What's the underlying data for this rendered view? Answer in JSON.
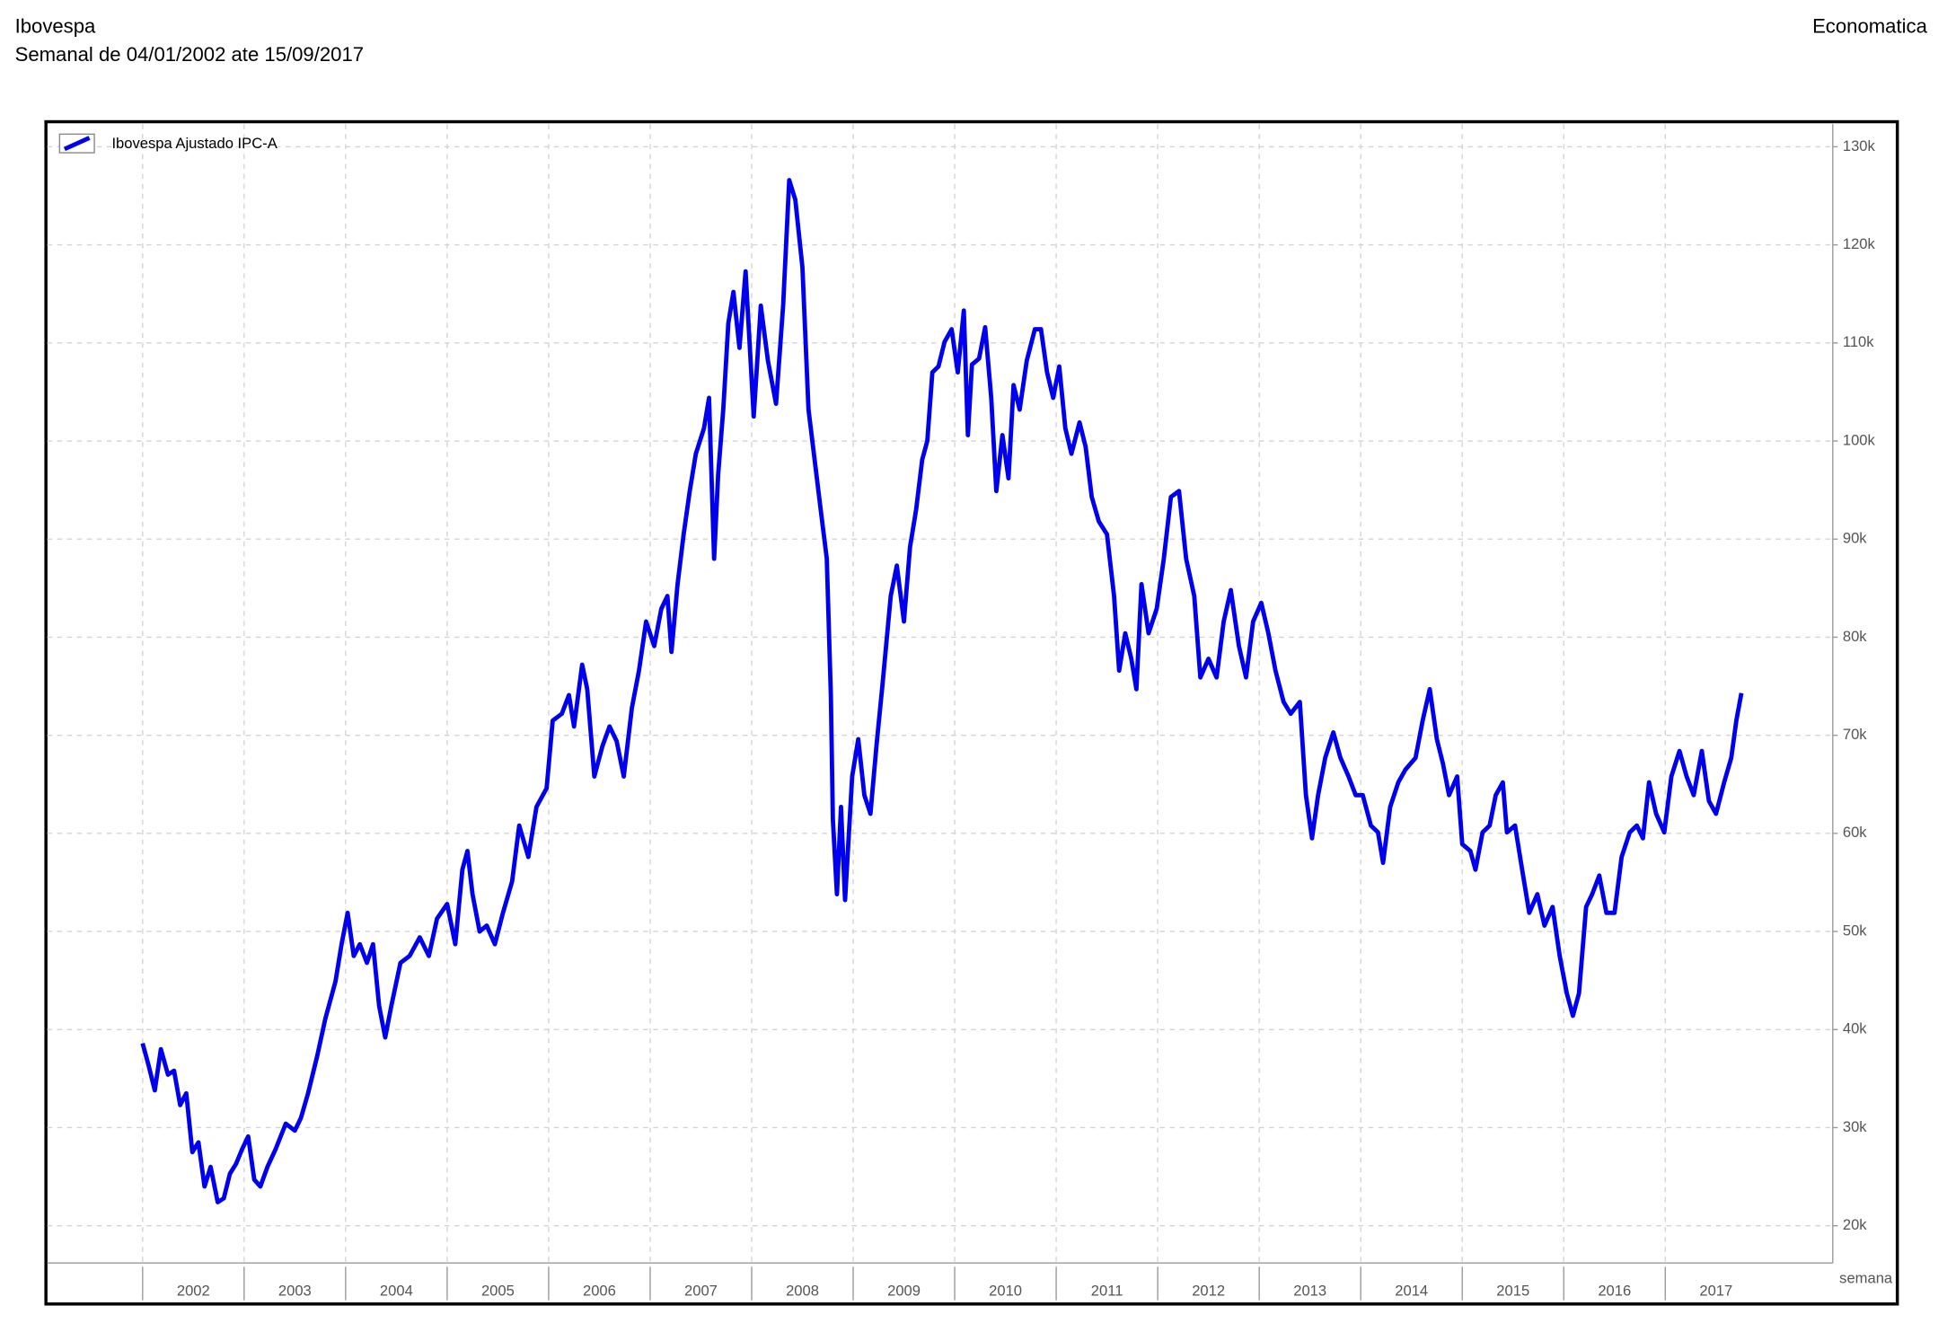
{
  "chart_data": {
    "type": "line",
    "title": "Ibovespa",
    "subtitle": "Semanal de 04/01/2002 ate 15/09/2017",
    "source": "Economatica",
    "xlabel": "semana",
    "x": [
      2002.0,
      2002.06,
      2002.12,
      2002.18,
      2002.25,
      2002.31,
      2002.37,
      2002.43,
      2002.49,
      2002.55,
      2002.61,
      2002.67,
      2002.74,
      2002.8,
      2002.86,
      2002.92,
      2002.98,
      2003.04,
      2003.1,
      2003.16,
      2003.23,
      2003.31,
      2003.41,
      2003.5,
      2003.56,
      2003.63,
      2003.72,
      2003.8,
      2003.9,
      2003.96,
      2004.02,
      2004.08,
      2004.14,
      2004.21,
      2004.27,
      2004.33,
      2004.39,
      2004.45,
      2004.54,
      2004.63,
      2004.73,
      2004.82,
      2004.9,
      2005.0,
      2005.08,
      2005.15,
      2005.2,
      2005.25,
      2005.32,
      2005.39,
      2005.47,
      2005.55,
      2005.64,
      2005.71,
      2005.8,
      2005.88,
      2005.98,
      2006.04,
      2006.13,
      2006.2,
      2006.25,
      2006.33,
      2006.38,
      2006.45,
      2006.53,
      2006.6,
      2006.67,
      2006.74,
      2006.82,
      2006.89,
      2006.96,
      2007.04,
      2007.11,
      2007.17,
      2007.21,
      2007.27,
      2007.33,
      2007.39,
      2007.45,
      2007.53,
      2007.58,
      2007.63,
      2007.67,
      2007.72,
      2007.77,
      2007.82,
      2007.88,
      2007.94,
      2008.02,
      2008.09,
      2008.16,
      2008.24,
      2008.31,
      2008.37,
      2008.43,
      2008.5,
      2008.56,
      2008.62,
      2008.68,
      2008.74,
      2008.78,
      2008.8,
      2008.84,
      2008.88,
      2008.92,
      2008.99,
      2009.05,
      2009.11,
      2009.17,
      2009.23,
      2009.29,
      2009.37,
      2009.43,
      2009.5,
      2009.56,
      2009.62,
      2009.68,
      2009.73,
      2009.78,
      2009.84,
      2009.9,
      2009.97,
      2010.03,
      2010.09,
      2010.13,
      2010.17,
      2010.24,
      2010.3,
      2010.36,
      2010.41,
      2010.47,
      2010.53,
      2010.58,
      2010.64,
      2010.71,
      2010.79,
      2010.85,
      2010.91,
      2010.97,
      2011.03,
      2011.09,
      2011.15,
      2011.23,
      2011.29,
      2011.35,
      2011.42,
      2011.5,
      2011.57,
      2011.62,
      2011.68,
      2011.74,
      2011.79,
      2011.84,
      2011.91,
      2011.99,
      2012.06,
      2012.13,
      2012.21,
      2012.28,
      2012.36,
      2012.42,
      2012.5,
      2012.58,
      2012.65,
      2012.72,
      2012.8,
      2012.87,
      2012.94,
      2013.02,
      2013.09,
      2013.16,
      2013.24,
      2013.31,
      2013.4,
      2013.46,
      2013.52,
      2013.58,
      2013.65,
      2013.73,
      2013.8,
      2013.88,
      2013.95,
      2014.02,
      2014.1,
      2014.17,
      2014.22,
      2014.29,
      2014.37,
      2014.44,
      2014.54,
      2014.61,
      2014.68,
      2014.75,
      2014.81,
      2014.87,
      2014.95,
      2015.0,
      2015.08,
      2015.13,
      2015.2,
      2015.27,
      2015.33,
      2015.4,
      2015.44,
      2015.52,
      2015.59,
      2015.66,
      2015.74,
      2015.81,
      2015.89,
      2015.96,
      2016.03,
      2016.09,
      2016.15,
      2016.22,
      2016.28,
      2016.35,
      2016.42,
      2016.5,
      2016.57,
      2016.65,
      2016.72,
      2016.78,
      2016.84,
      2016.91,
      2016.99,
      2017.06,
      2017.14,
      2017.21,
      2017.28,
      2017.36,
      2017.43,
      2017.5,
      2017.58,
      2017.65,
      2017.7,
      2017.75
    ],
    "series": [
      {
        "name": "Ibovespa Ajustado IPC-A",
        "color": "#0000ee",
        "values": [
          38600,
          36300,
          33800,
          38000,
          35400,
          35800,
          32300,
          33500,
          27500,
          28500,
          24000,
          26000,
          22400,
          22800,
          25300,
          26300,
          27800,
          29100,
          24700,
          24000,
          26000,
          27800,
          30400,
          29700,
          31000,
          33500,
          37300,
          41100,
          44900,
          48700,
          51900,
          47500,
          48700,
          46800,
          48700,
          42400,
          39200,
          42400,
          46800,
          47500,
          49400,
          47500,
          51300,
          52800,
          48700,
          56300,
          58200,
          53800,
          50000,
          50600,
          48700,
          51900,
          55100,
          60800,
          57600,
          62700,
          64600,
          71500,
          72200,
          74100,
          70900,
          77200,
          74700,
          65800,
          68900,
          70900,
          69400,
          65800,
          72800,
          76600,
          81600,
          79100,
          82900,
          84200,
          78500,
          85400,
          90500,
          94900,
          98700,
          101300,
          104400,
          88000,
          96600,
          103200,
          112000,
          115200,
          109500,
          117300,
          102500,
          113800,
          108200,
          103800,
          113800,
          126600,
          124600,
          117700,
          103200,
          98100,
          93000,
          88000,
          74100,
          61400,
          53800,
          62700,
          53200,
          65800,
          69600,
          63900,
          62000,
          69000,
          75300,
          84200,
          87300,
          81600,
          89200,
          93000,
          98100,
          100000,
          107000,
          107600,
          110100,
          111400,
          107000,
          113300,
          100600,
          107800,
          108400,
          111600,
          104400,
          94900,
          100600,
          96200,
          105700,
          103200,
          108200,
          111400,
          111400,
          107000,
          104400,
          107600,
          101300,
          98700,
          101900,
          99400,
          94300,
          91800,
          90500,
          84200,
          76600,
          80400,
          77800,
          74700,
          85400,
          80400,
          82900,
          88000,
          94300,
          94900,
          88000,
          84200,
          75900,
          77800,
          75900,
          81600,
          84800,
          79100,
          75900,
          81600,
          83500,
          80400,
          76600,
          73400,
          72200,
          73400,
          63900,
          59500,
          63900,
          67700,
          70300,
          67700,
          65800,
          63900,
          63900,
          60800,
          60100,
          57000,
          62700,
          65200,
          66500,
          67700,
          71500,
          74700,
          69600,
          67100,
          63900,
          65800,
          58900,
          58200,
          56300,
          60100,
          60800,
          63900,
          65200,
          60100,
          60800,
          56300,
          51900,
          53800,
          50600,
          52500,
          47500,
          43700,
          41400,
          43700,
          52500,
          53800,
          55700,
          51900,
          51900,
          57600,
          60100,
          60800,
          59500,
          65200,
          62000,
          60100,
          65800,
          68400,
          65800,
          63900,
          68400,
          63300,
          62000,
          65200,
          67700,
          71500,
          74300
        ]
      }
    ],
    "xlim": [
      2001.06,
      2018.65
    ],
    "xticks": [
      2002,
      2003,
      2004,
      2005,
      2006,
      2007,
      2008,
      2009,
      2010,
      2011,
      2012,
      2013,
      2014,
      2015,
      2016,
      2017
    ],
    "ylim": [
      16200,
      132300
    ],
    "yticks": [
      {
        "value": 20000,
        "label": "20k"
      },
      {
        "value": 30000,
        "label": "30k"
      },
      {
        "value": 40000,
        "label": "40k"
      },
      {
        "value": 50000,
        "label": "50k"
      },
      {
        "value": 60000,
        "label": "60k"
      },
      {
        "value": 70000,
        "label": "70k"
      },
      {
        "value": 80000,
        "label": "80k"
      },
      {
        "value": 90000,
        "label": "90k"
      },
      {
        "value": 100000,
        "label": "100k"
      },
      {
        "value": 110000,
        "label": "110k"
      },
      {
        "value": 120000,
        "label": "120k"
      },
      {
        "value": 130000,
        "label": "130k"
      }
    ],
    "grid": true,
    "legend": "top-left"
  }
}
